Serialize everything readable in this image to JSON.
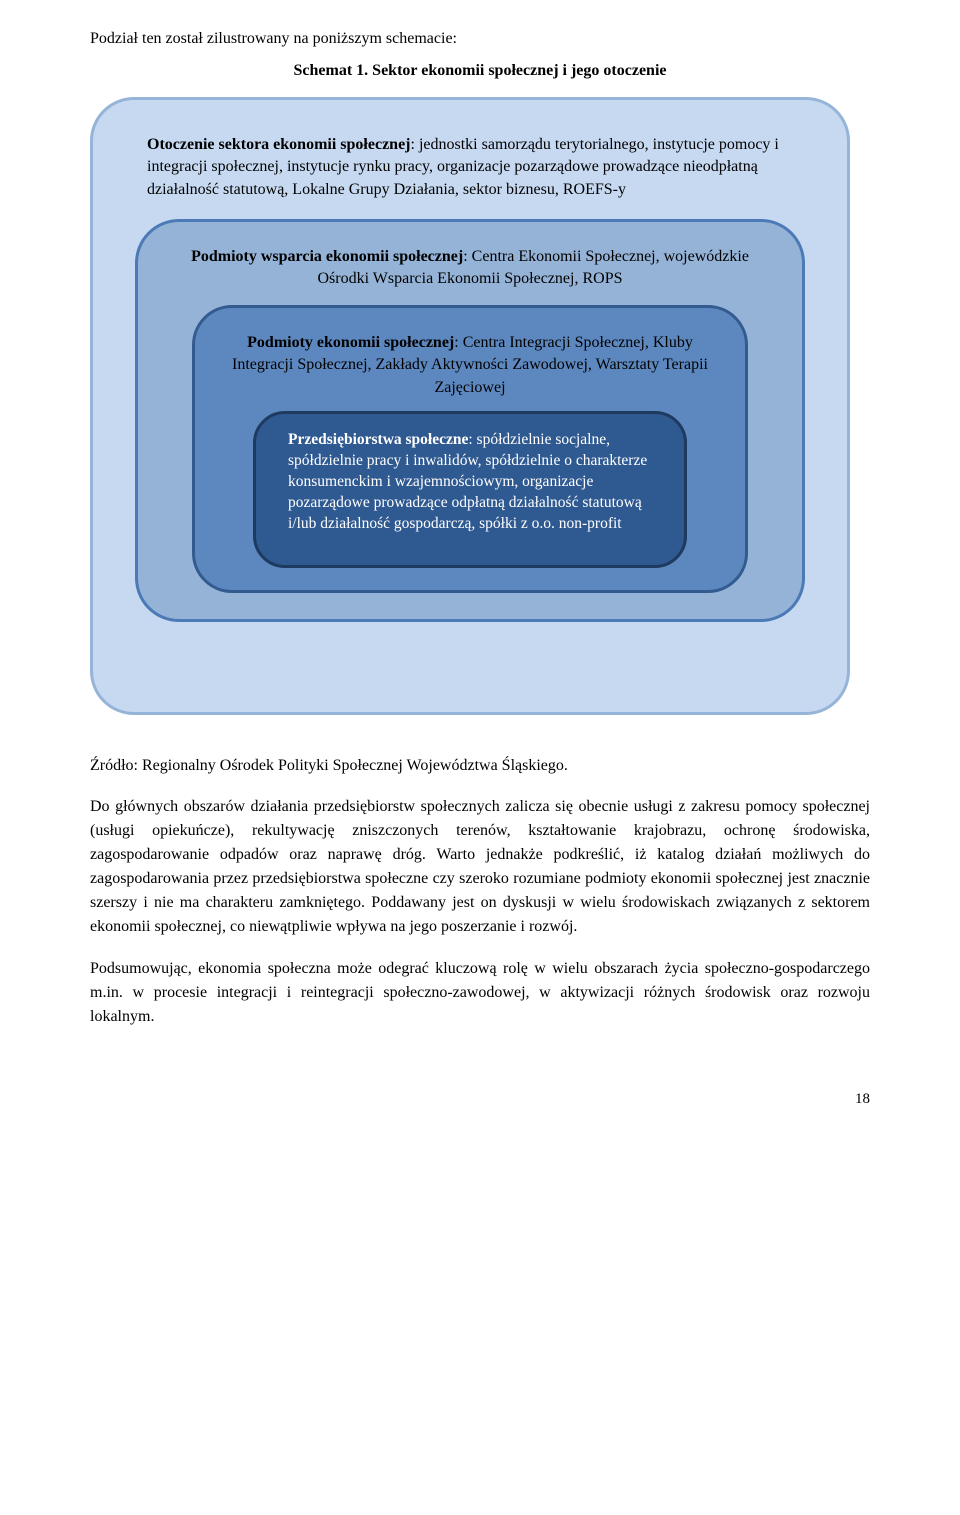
{
  "intro": "Podział ten został zilustrowany na poniższym schemacie:",
  "schema_title": "Schemat 1. Sektor ekonomii społecznej i jego otoczenie",
  "diagram": {
    "colors": {
      "outer_bg": "#c6d9f1",
      "outer_border": "#95b4d7",
      "mid_bg": "#95b3d7",
      "mid_border": "#4b7ab6",
      "inner_bg": "#5d88bf",
      "inner_border": "#335b90",
      "core_bg": "#2f5991",
      "core_border": "#1e3a5f",
      "core_text": "#ffffff"
    },
    "outer": {
      "title": "Otoczenie sektora ekonomii społecznej",
      "text": ": jednostki samorządu terytorialnego, instytucje pomocy i integracji społecznej, instytucje rynku pracy, organizacje pozarządowe prowadzące nieodpłatną działalność statutową, Lokalne Grupy Działania, sektor biznesu, ROEFS-y"
    },
    "mid": {
      "title": "Podmioty wsparcia ekonomii społecznej",
      "text": ": Centra Ekonomii Społecznej, wojewódzkie Ośrodki Wsparcia Ekonomii Społecznej, ROPS"
    },
    "inner": {
      "title": "Podmioty ekonomii społecznej",
      "text": ": Centra Integracji Społecznej, Kluby Integracji Społecznej, Zakłady Aktywności Zawodowej, Warsztaty Terapii Zajęciowej"
    },
    "core": {
      "title": "Przedsiębiorstwa społeczne",
      "text": ": spółdzielnie socjalne, spółdzielnie pracy i inwalidów, spółdzielnie o charakterze konsumenckim i wzajemnościowym, organizacje pozarządowe prowadzące odpłatną działalność statutową i/lub działalność gospodarczą, spółki z o.o. non-profit"
    }
  },
  "source": "Źródło: Regionalny Ośrodek Polityki Społecznej Województwa Śląskiego.",
  "para1": "Do głównych obszarów działania przedsiębiorstw społecznych zalicza się obecnie usługi z zakresu pomocy społecznej (usługi opiekuńcze), rekultywację zniszczonych terenów, kształtowanie krajobrazu, ochronę środowiska, zagospodarowanie odpadów oraz naprawę dróg. Warto jednakże podkreślić, iż katalog działań możliwych do zagospodarowania przez przedsiębiorstwa społeczne czy szeroko rozumiane podmioty ekonomii społecznej jest znacznie szerszy i nie ma charakteru zamkniętego. Poddawany jest on dyskusji w wielu środowiskach związanych z sektorem ekonomii społecznej, co niewątpliwie wpływa na jego poszerzanie i rozwój.",
  "para2": "Podsumowując, ekonomia społeczna może odegrać kluczową rolę w wielu obszarach życia społeczno-gospodarczego m.in. w procesie integracji i reintegracji społeczno-zawodowej, w aktywizacji różnych środowisk oraz rozwoju lokalnym.",
  "page_number": "18"
}
